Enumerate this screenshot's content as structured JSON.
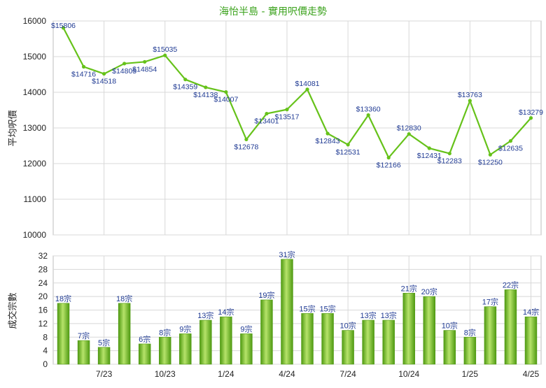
{
  "title": "海怡半島 - 實用呎價走勢",
  "colors": {
    "line": "#66c21a",
    "bar_light": "#b6e36a",
    "bar_dark": "#4f9a12",
    "grid": "#d8d8d8",
    "title": "#3aa21b",
    "label": "#1f3a93"
  },
  "chart_data": [
    {
      "type": "line",
      "title": "海怡半島 - 實用呎價走勢",
      "ylabel": "平均呎價",
      "ylim": [
        10000,
        16000
      ],
      "yticks": [
        "10000",
        "11000",
        "12000",
        "13000",
        "14000",
        "15000",
        "16000"
      ],
      "grid": true,
      "values": [
        15806,
        14716,
        14518,
        14805,
        14854,
        15035,
        14359,
        14138,
        14007,
        12678,
        13401,
        13517,
        14081,
        12843,
        12531,
        13360,
        12166,
        12830,
        12431,
        12283,
        13763,
        12250,
        12635,
        13279
      ],
      "labels": [
        "$15806",
        "$14716",
        "$14518",
        "$14805",
        "$14854",
        "$15035",
        "$14359",
        "$14138",
        "$14007",
        "$12678",
        "$13401",
        "$13517",
        "$14081",
        "$12843",
        "$12531",
        "$13360",
        "$12166",
        "$12830",
        "$12431",
        "$12283",
        "$13763",
        "$12250",
        "$12635",
        "$13279"
      ]
    },
    {
      "type": "bar",
      "ylabel": "成交宗數",
      "ylim": [
        0,
        32
      ],
      "yticks": [
        "0",
        "4",
        "8",
        "12",
        "16",
        "20",
        "24",
        "28",
        "32"
      ],
      "grid": true,
      "values": [
        18,
        7,
        5,
        18,
        6,
        8,
        9,
        13,
        14,
        9,
        19,
        31,
        15,
        15,
        10,
        13,
        13,
        21,
        20,
        10,
        8,
        17,
        22,
        14
      ],
      "labels": [
        "18宗",
        "7宗",
        "5宗",
        "18宗",
        "6宗",
        "8宗",
        "9宗",
        "13宗",
        "14宗",
        "9宗",
        "19宗",
        "31宗",
        "15宗",
        "15宗",
        "10宗",
        "13宗",
        "13宗",
        "21宗",
        "20宗",
        "10宗",
        "8宗",
        "17宗",
        "22宗",
        "14宗"
      ],
      "xticks": [
        "7/23",
        "10/23",
        "1/24",
        "4/24",
        "7/24",
        "10/24",
        "1/25",
        "4/25"
      ]
    }
  ]
}
